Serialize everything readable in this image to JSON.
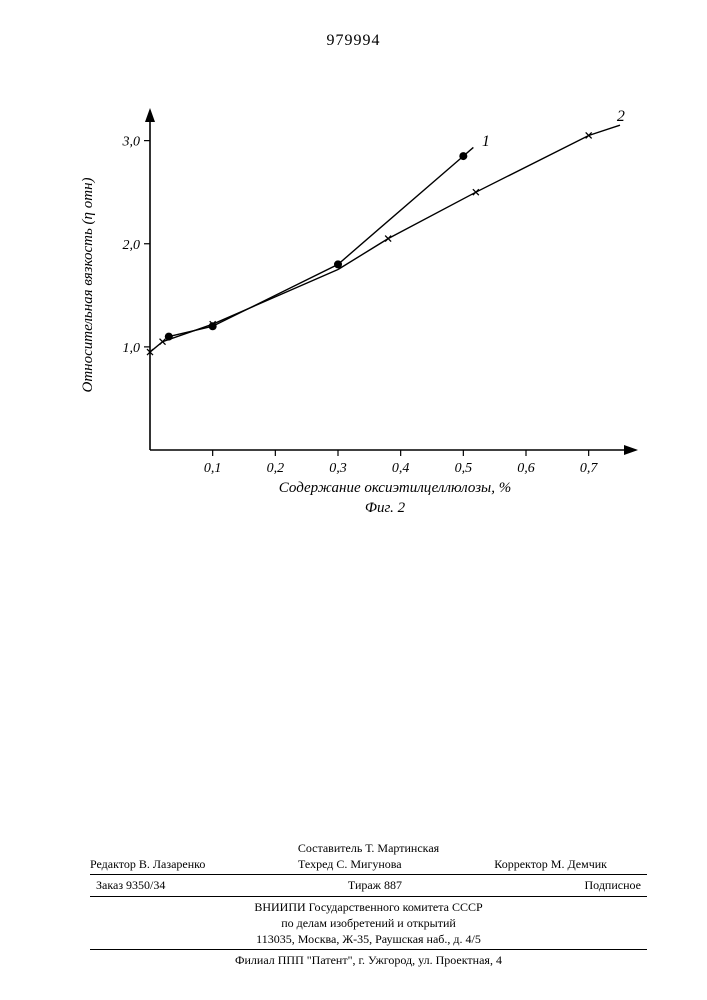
{
  "page_number": "979994",
  "chart": {
    "type": "line",
    "xlabel": "Содержание оксиэтилцеллюлозы, %",
    "ylabel": "Относительная вязкость (η отн)",
    "caption": "Фиг. 2",
    "xlim": [
      0,
      0.75
    ],
    "ylim": [
      0,
      3.2
    ],
    "xticks": [
      0.1,
      0.2,
      0.3,
      0.4,
      0.5,
      0.6,
      0.7
    ],
    "xtick_labels": [
      "0,1",
      "0,2",
      "0,3",
      "0,4",
      "0,5",
      "0,6",
      "0,7"
    ],
    "yticks": [
      1.0,
      2.0,
      3.0
    ],
    "ytick_labels": [
      "1,0",
      "2,0",
      "3,0"
    ],
    "stroke_color": "#000000",
    "background_color": "#ffffff",
    "line_width": 1.4,
    "tick_fontsize": 14,
    "label_fontsize": 15,
    "series": [
      {
        "label": "1",
        "marker": "dot",
        "marker_size": 4,
        "x": [
          0.03,
          0.1,
          0.3,
          0.5
        ],
        "y": [
          1.1,
          1.2,
          1.8,
          2.85
        ]
      },
      {
        "label": "2",
        "marker": "x",
        "marker_size": 6,
        "segments": [
          {
            "x": [
              0.0,
              0.02,
              0.1,
              0.3
            ],
            "y": [
              0.95,
              1.05,
              1.22,
              1.75
            ]
          },
          {
            "x": [
              0.3,
              0.38,
              0.52,
              0.7,
              0.75
            ],
            "y": [
              1.75,
              2.05,
              2.5,
              3.05,
              3.15
            ]
          }
        ],
        "points_x": [
          0.0,
          0.02,
          0.1,
          0.38,
          0.52,
          0.7
        ],
        "points_y": [
          0.95,
          1.05,
          1.22,
          2.05,
          2.5,
          3.05
        ]
      }
    ]
  },
  "footer": {
    "compiler": "Составитель Т. Мартинская",
    "editor": "Редактор В. Лазаренко",
    "tech_editor": "Техред С. Мигунова",
    "corrector": "Корректор М. Демчик",
    "order": "Заказ 9350/34",
    "print_run": "Тираж 887",
    "subscription": "Подписное",
    "org_line1": "ВНИИПИ Государственного комитета СССР",
    "org_line2": "по делам изобретений и открытий",
    "address1": "113035, Москва, Ж-35, Раушская наб., д. 4/5",
    "address2": "Филиал ППП \"Патент\", г. Ужгород, ул. Проектная, 4"
  }
}
